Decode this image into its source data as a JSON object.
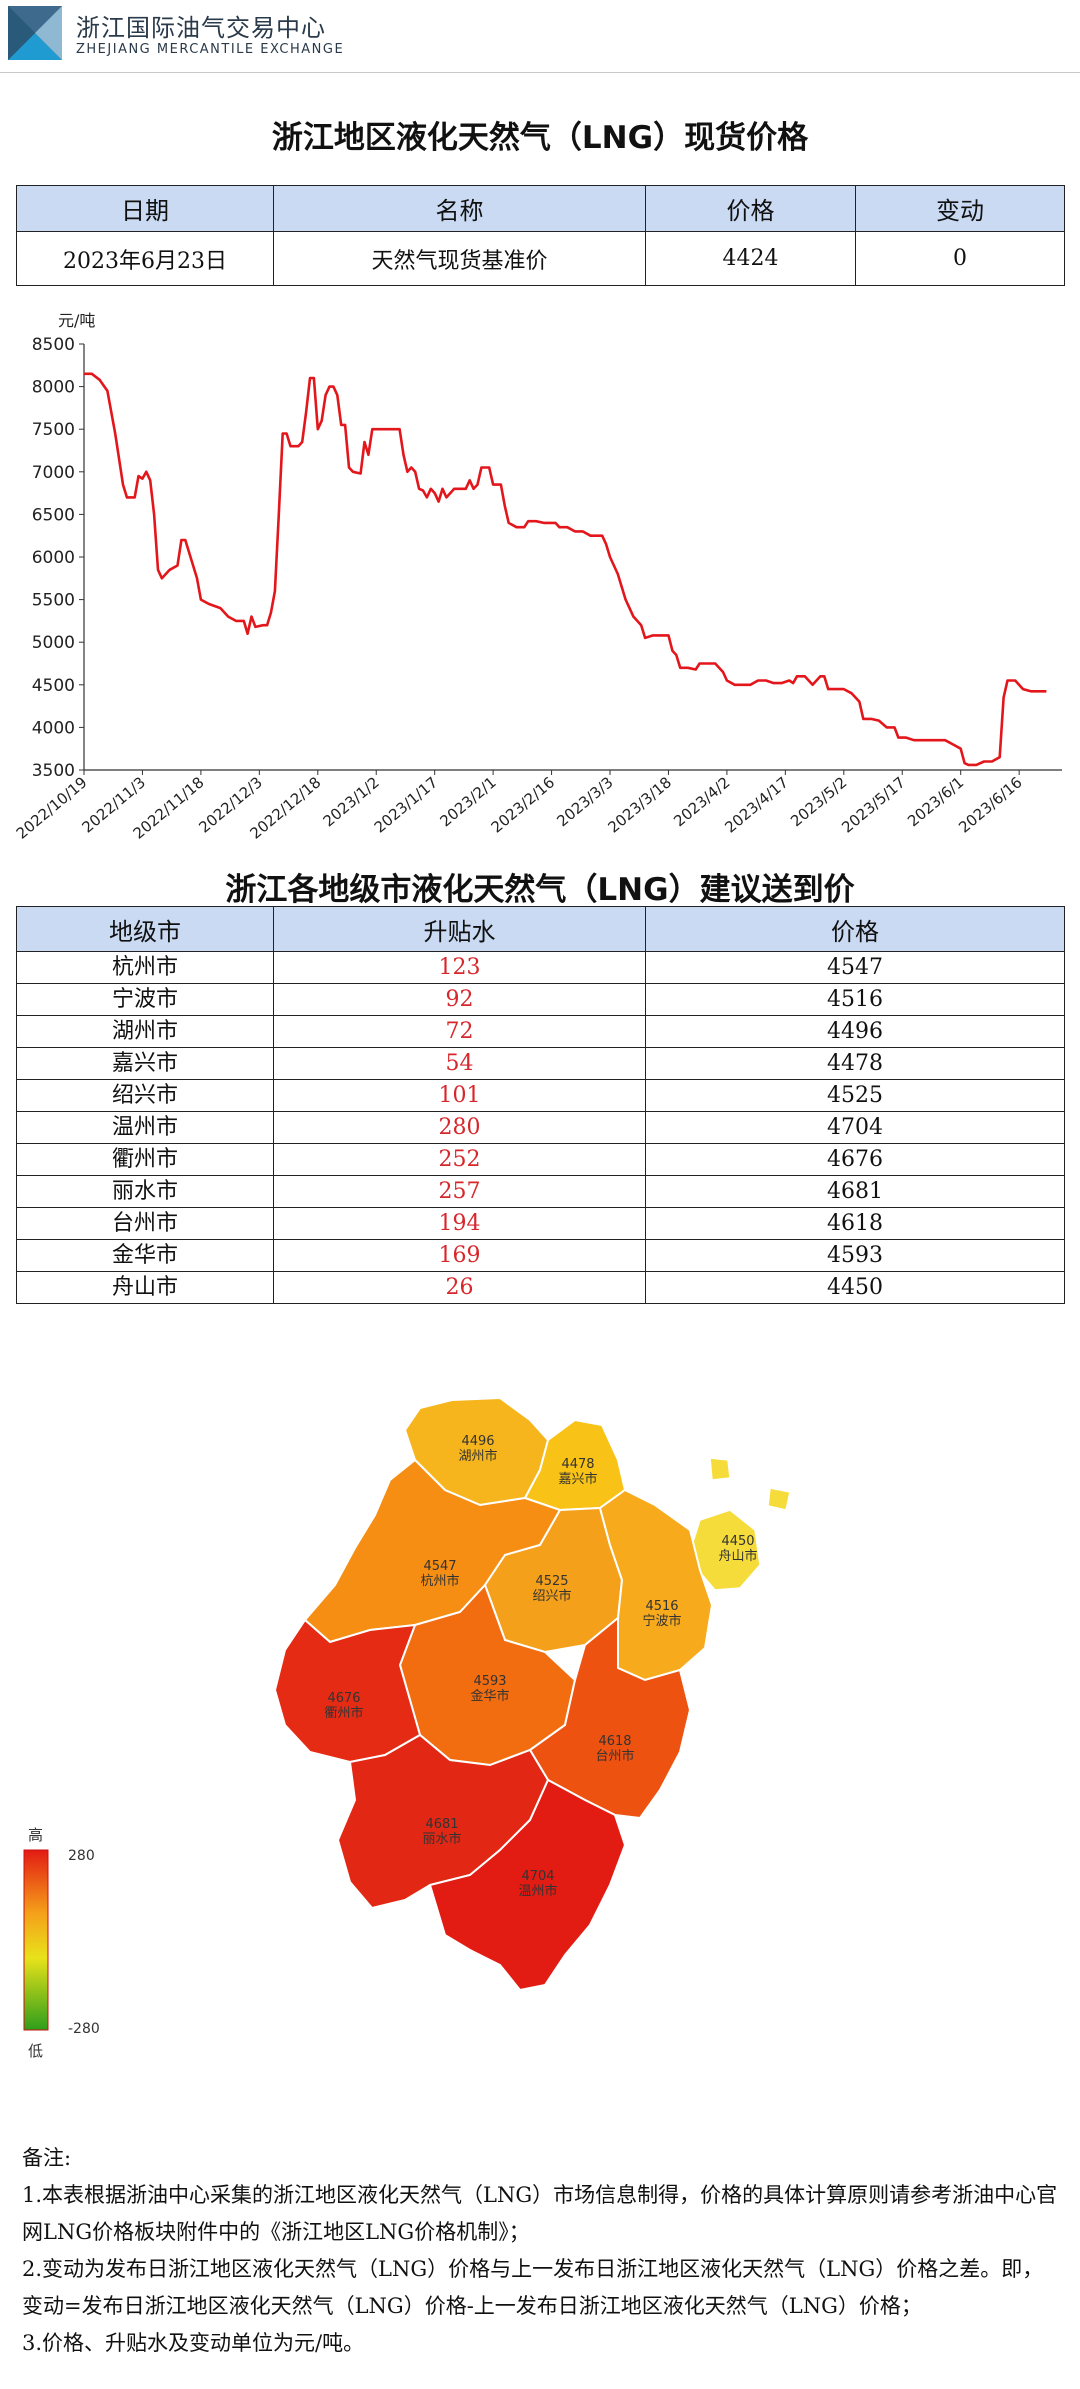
{
  "header": {
    "org_name_cn": "浙江国际油气交易中心",
    "org_name_en": "ZHEJIANG MERCANTILE EXCHANGE"
  },
  "spot": {
    "title": "浙江地区液化天然气（LNG）现货价格",
    "headers": [
      "日期",
      "名称",
      "价格",
      "变动"
    ],
    "row": [
      "2023年6月23日",
      "天然气现货基准价",
      "4424",
      "0"
    ]
  },
  "chart_data": {
    "type": "line",
    "ylabel": "元/吨",
    "ylim": [
      3500,
      8500
    ],
    "yticks": [
      3500,
      4000,
      4500,
      5000,
      5500,
      6000,
      6500,
      7000,
      7500,
      8000,
      8500
    ],
    "xticks": [
      "2022/10/19",
      "2022/11/3",
      "2022/11/18",
      "2022/12/3",
      "2022/12/18",
      "2023/1/2",
      "2023/1/17",
      "2023/2/1",
      "2023/2/16",
      "2023/3/3",
      "2023/3/18",
      "2023/4/2",
      "2023/4/17",
      "2023/5/2",
      "2023/5/17",
      "2023/6/1",
      "2023/6/16"
    ],
    "line_color": "#e3161b",
    "series": [
      {
        "name": "",
        "points": [
          [
            "2022/10/19",
            8150
          ],
          [
            "2022/10/21",
            8150
          ],
          [
            "2022/10/23",
            8080
          ],
          [
            "2022/10/25",
            7950
          ],
          [
            "2022/10/27",
            7450
          ],
          [
            "2022/10/29",
            6850
          ],
          [
            "2022/10/30",
            6700
          ],
          [
            "2022/11/1",
            6700
          ],
          [
            "2022/11/2",
            6950
          ],
          [
            "2022/11/3",
            6920
          ],
          [
            "2022/11/4",
            7000
          ],
          [
            "2022/11/5",
            6900
          ],
          [
            "2022/11/6",
            6500
          ],
          [
            "2022/11/7",
            5850
          ],
          [
            "2022/11/8",
            5750
          ],
          [
            "2022/11/10",
            5850
          ],
          [
            "2022/11/12",
            5900
          ],
          [
            "2022/11/13",
            6200
          ],
          [
            "2022/11/14",
            6200
          ],
          [
            "2022/11/16",
            5900
          ],
          [
            "2022/11/17",
            5750
          ],
          [
            "2022/11/18",
            5500
          ],
          [
            "2022/11/20",
            5450
          ],
          [
            "2022/11/23",
            5400
          ],
          [
            "2022/11/25",
            5300
          ],
          [
            "2022/11/27",
            5250
          ],
          [
            "2022/11/29",
            5250
          ],
          [
            "2022/11/30",
            5100
          ],
          [
            "2022/12/1",
            5300
          ],
          [
            "2022/12/2",
            5180
          ],
          [
            "2022/12/4",
            5200
          ],
          [
            "2022/12/5",
            5200
          ],
          [
            "2022/12/6",
            5350
          ],
          [
            "2022/12/7",
            5600
          ],
          [
            "2022/12/8",
            6500
          ],
          [
            "2022/12/9",
            7450
          ],
          [
            "2022/12/10",
            7450
          ],
          [
            "2022/12/11",
            7300
          ],
          [
            "2022/12/13",
            7300
          ],
          [
            "2022/12/14",
            7350
          ],
          [
            "2022/12/15",
            7700
          ],
          [
            "2022/12/16",
            8100
          ],
          [
            "2022/12/17",
            8100
          ],
          [
            "2022/12/18",
            7500
          ],
          [
            "2022/12/19",
            7600
          ],
          [
            "2022/12/20",
            7900
          ],
          [
            "2022/12/21",
            8000
          ],
          [
            "2022/12/22",
            8000
          ],
          [
            "2022/12/23",
            7900
          ],
          [
            "2022/12/24",
            7550
          ],
          [
            "2022/12/25",
            7550
          ],
          [
            "2022/12/26",
            7050
          ],
          [
            "2022/12/27",
            7000
          ],
          [
            "2022/12/29",
            6980
          ],
          [
            "2022/12/30",
            7350
          ],
          [
            "2022/12/31",
            7200
          ],
          [
            "2023/1/1",
            7500
          ],
          [
            "2023/1/3",
            7500
          ],
          [
            "2023/1/6",
            7500
          ],
          [
            "2023/1/8",
            7500
          ],
          [
            "2023/1/9",
            7200
          ],
          [
            "2023/1/10",
            7000
          ],
          [
            "2023/1/11",
            7050
          ],
          [
            "2023/1/12",
            7000
          ],
          [
            "2023/1/13",
            6800
          ],
          [
            "2023/1/14",
            6780
          ],
          [
            "2023/1/15",
            6700
          ],
          [
            "2023/1/16",
            6800
          ],
          [
            "2023/1/17",
            6750
          ],
          [
            "2023/1/18",
            6650
          ],
          [
            "2023/1/19",
            6800
          ],
          [
            "2023/1/20",
            6700
          ],
          [
            "2023/1/21",
            6750
          ],
          [
            "2023/1/22",
            6800
          ],
          [
            "2023/1/23",
            6800
          ],
          [
            "2023/1/25",
            6800
          ],
          [
            "2023/1/26",
            6900
          ],
          [
            "2023/1/27",
            6800
          ],
          [
            "2023/1/28",
            6850
          ],
          [
            "2023/1/29",
            7050
          ],
          [
            "2023/1/31",
            7050
          ],
          [
            "2023/2/1",
            6850
          ],
          [
            "2023/2/3",
            6850
          ],
          [
            "2023/2/4",
            6600
          ],
          [
            "2023/2/5",
            6400
          ],
          [
            "2023/2/7",
            6350
          ],
          [
            "2023/2/9",
            6350
          ],
          [
            "2023/2/10",
            6420
          ],
          [
            "2023/2/12",
            6420
          ],
          [
            "2023/2/14",
            6400
          ],
          [
            "2023/2/17",
            6400
          ],
          [
            "2023/2/18",
            6350
          ],
          [
            "2023/2/20",
            6350
          ],
          [
            "2023/2/22",
            6300
          ],
          [
            "2023/2/24",
            6300
          ],
          [
            "2023/2/26",
            6250
          ],
          [
            "2023/3/1",
            6250
          ],
          [
            "2023/3/2",
            6150
          ],
          [
            "2023/3/3",
            6000
          ],
          [
            "2023/3/5",
            5800
          ],
          [
            "2023/3/7",
            5500
          ],
          [
            "2023/3/9",
            5300
          ],
          [
            "2023/3/11",
            5200
          ],
          [
            "2023/3/12",
            5050
          ],
          [
            "2023/3/14",
            5080
          ],
          [
            "2023/3/16",
            5080
          ],
          [
            "2023/3/18",
            5080
          ],
          [
            "2023/3/19",
            4900
          ],
          [
            "2023/3/20",
            4850
          ],
          [
            "2023/3/21",
            4700
          ],
          [
            "2023/3/23",
            4700
          ],
          [
            "2023/3/25",
            4680
          ],
          [
            "2023/3/26",
            4750
          ],
          [
            "2023/3/28",
            4750
          ],
          [
            "2023/3/30",
            4750
          ],
          [
            "2023/4/1",
            4650
          ],
          [
            "2023/4/2",
            4550
          ],
          [
            "2023/4/4",
            4500
          ],
          [
            "2023/4/6",
            4500
          ],
          [
            "2023/4/8",
            4500
          ],
          [
            "2023/4/10",
            4550
          ],
          [
            "2023/4/12",
            4550
          ],
          [
            "2023/4/14",
            4520
          ],
          [
            "2023/4/16",
            4520
          ],
          [
            "2023/4/18",
            4550
          ],
          [
            "2023/4/19",
            4520
          ],
          [
            "2023/4/20",
            4600
          ],
          [
            "2023/4/22",
            4600
          ],
          [
            "2023/4/24",
            4500
          ],
          [
            "2023/4/26",
            4600
          ],
          [
            "2023/4/27",
            4600
          ],
          [
            "2023/4/28",
            4450
          ],
          [
            "2023/4/30",
            4450
          ],
          [
            "2023/5/2",
            4450
          ],
          [
            "2023/5/4",
            4400
          ],
          [
            "2023/5/6",
            4300
          ],
          [
            "2023/5/7",
            4100
          ],
          [
            "2023/5/9",
            4100
          ],
          [
            "2023/5/11",
            4080
          ],
          [
            "2023/5/13",
            4000
          ],
          [
            "2023/5/15",
            4000
          ],
          [
            "2023/5/16",
            3880
          ],
          [
            "2023/5/18",
            3880
          ],
          [
            "2023/5/20",
            3850
          ],
          [
            "2023/5/22",
            3850
          ],
          [
            "2023/5/25",
            3850
          ],
          [
            "2023/5/28",
            3850
          ],
          [
            "2023/5/30",
            3800
          ],
          [
            "2023/6/1",
            3750
          ],
          [
            "2023/6/2",
            3580
          ],
          [
            "2023/6/3",
            3560
          ],
          [
            "2023/6/5",
            3560
          ],
          [
            "2023/6/7",
            3600
          ],
          [
            "2023/6/9",
            3600
          ],
          [
            "2023/6/11",
            3650
          ],
          [
            "2023/6/12",
            4350
          ],
          [
            "2023/6/13",
            4550
          ],
          [
            "2023/6/15",
            4550
          ],
          [
            "2023/6/17",
            4450
          ],
          [
            "2023/6/19",
            4424
          ],
          [
            "2023/6/23",
            4424
          ]
        ]
      }
    ]
  },
  "cities": {
    "title": "浙江各地级市液化天然气（LNG）建议送到价",
    "headers": [
      "地级市",
      "升贴水",
      "价格"
    ],
    "rows": [
      [
        "杭州市",
        "123",
        "4547"
      ],
      [
        "宁波市",
        "92",
        "4516"
      ],
      [
        "湖州市",
        "72",
        "4496"
      ],
      [
        "嘉兴市",
        "54",
        "4478"
      ],
      [
        "绍兴市",
        "101",
        "4525"
      ],
      [
        "温州市",
        "280",
        "4704"
      ],
      [
        "衢州市",
        "252",
        "4676"
      ],
      [
        "丽水市",
        "257",
        "4681"
      ],
      [
        "台州市",
        "194",
        "4618"
      ],
      [
        "金华市",
        "169",
        "4593"
      ],
      [
        "舟山市",
        "26",
        "4450"
      ]
    ]
  },
  "map": {
    "legend_high": "高",
    "legend_low": "低",
    "legend_max": "280",
    "legend_min": "-280",
    "regions": [
      {
        "name": "湖州市",
        "price": "4496",
        "color": "#f6b51c"
      },
      {
        "name": "嘉兴市",
        "price": "4478",
        "color": "#f8c316"
      },
      {
        "name": "舟山市",
        "price": "4450",
        "color": "#f5dc3a"
      },
      {
        "name": "杭州市",
        "price": "4547",
        "color": "#f58e12"
      },
      {
        "name": "绍兴市",
        "price": "4525",
        "color": "#f5a01a"
      },
      {
        "name": "宁波市",
        "price": "4516",
        "color": "#f7aa1c"
      },
      {
        "name": "金华市",
        "price": "4593",
        "color": "#f26c10"
      },
      {
        "name": "衢州市",
        "price": "4676",
        "color": "#e52b14"
      },
      {
        "name": "台州市",
        "price": "4618",
        "color": "#ee5210"
      },
      {
        "name": "丽水市",
        "price": "4681",
        "color": "#e22814"
      },
      {
        "name": "温州市",
        "price": "4704",
        "color": "#e21b13"
      }
    ]
  },
  "notes": {
    "heading": "备注:",
    "items": [
      "1.本表根据浙油中心采集的浙江地区液化天然气（LNG）市场信息制得，价格的具体计算原则请参考浙油中心官网LNG价格板块附件中的《浙江地区LNG价格机制》；",
      "2.变动为发布日浙江地区液化天然气（LNG）价格与上一发布日浙江地区液化天然气（LNG）价格之差。即，变动=发布日浙江地区液化天然气（LNG）价格-上一发布日浙江地区液化天然气（LNG）价格；",
      "3.价格、升贴水及变动单位为元/吨。"
    ]
  }
}
